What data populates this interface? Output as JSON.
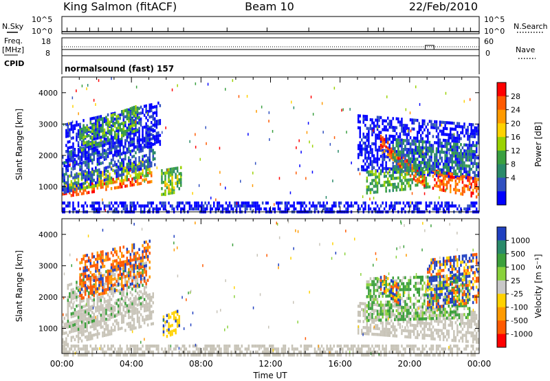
{
  "header": {
    "station": "King Salmon (fitACF)",
    "beam": "Beam 10",
    "date": "22/Feb/2010"
  },
  "side_labels": {
    "nsky": "N.Sky",
    "freq": "Freq.",
    "freq_unit": "[MHz]",
    "cpid": "CPID",
    "nsearch": "N.Search",
    "nave": "Nave"
  },
  "cpid_text": "normalsound (fast) 157",
  "chart_data": [
    {
      "type": "line",
      "name": "nsky-nsearch",
      "yticks_left": [
        "10^5",
        "10^0"
      ],
      "yticks_right": [
        "10^5",
        "10^0"
      ],
      "spike_hours": [
        0.3,
        0.8,
        1.6,
        2.1,
        2.9,
        3.4,
        4.0,
        5.2,
        6.1,
        7.0,
        9.5,
        11.8,
        14.2,
        17.6,
        18.2,
        18.5,
        20.1,
        21.4,
        22.3,
        22.7,
        23.1,
        23.5
      ]
    },
    {
      "type": "line",
      "name": "freq-nave",
      "yticks_left": [
        "18",
        "8"
      ],
      "yticks_right": [
        "60",
        "0"
      ],
      "freq_mhz": 10.8,
      "nave_step": {
        "start_hour": 20.9,
        "end_hour": 21.4
      }
    },
    {
      "type": "heatmap",
      "name": "power",
      "xlabel": "",
      "ylabel": "Slant Range [km]",
      "xlim": [
        0,
        24
      ],
      "ylim": [
        200,
        4500
      ],
      "yticks": [
        1000,
        2000,
        3000,
        4000
      ],
      "colorbar_label": "Power [dB]",
      "colorbar_ticks": [
        "28",
        "24",
        "20",
        "16",
        "12",
        "8",
        "4"
      ],
      "colorbar_colors": [
        "#ff0000",
        "#ff5a00",
        "#ff9a00",
        "#ffd200",
        "#9ad200",
        "#3aa040",
        "#2a8a6a",
        "#3050c0",
        "#0000ff"
      ],
      "colors": [
        "#0000ff",
        "#3050c0",
        "#2a8a6a",
        "#3aa040",
        "#9ad200",
        "#ffd200",
        "#ff9a00",
        "#ff5a00",
        "#ff0000"
      ],
      "bands": [
        {
          "x0": 0.0,
          "x1": 5.2,
          "y_start": 900,
          "y_end": 1400,
          "width": 180,
          "level": 7
        },
        {
          "x0": 0.0,
          "x1": 5.0,
          "y_start": 1150,
          "y_end": 1700,
          "width": 280,
          "level": 4
        },
        {
          "x0": 0.0,
          "x1": 5.3,
          "y_start": 1500,
          "y_end": 2400,
          "width": 650,
          "level": 1
        },
        {
          "x0": 0.2,
          "x1": 5.6,
          "y_start": 2400,
          "y_end": 3100,
          "width": 700,
          "level": 0
        },
        {
          "x0": 1.0,
          "x1": 4.5,
          "y_start": 2600,
          "y_end": 3300,
          "width": 400,
          "level": 3
        },
        {
          "x0": 5.7,
          "x1": 6.8,
          "y_start": 1200,
          "y_end": 1300,
          "width": 400,
          "level": 3
        },
        {
          "x0": 5.9,
          "x1": 6.6,
          "y_start": 1000,
          "y_end": 1300,
          "width": 200,
          "level": 5
        },
        {
          "x0": 17.0,
          "x1": 23.99,
          "y_start": 2500,
          "y_end": 2200,
          "width": 900,
          "level": 0
        },
        {
          "x0": 17.5,
          "x1": 21.2,
          "y_start": 1200,
          "y_end": 1400,
          "width": 350,
          "level": 3
        },
        {
          "x0": 18.3,
          "x1": 21.0,
          "y_start": 2500,
          "y_end": 1100,
          "width": 220,
          "level": 7
        },
        {
          "x0": 21.3,
          "x1": 23.99,
          "y_start": 1300,
          "y_end": 1000,
          "width": 300,
          "level": 7
        },
        {
          "x0": 19.0,
          "x1": 23.9,
          "y_start": 2100,
          "y_end": 1900,
          "width": 500,
          "level": 2
        },
        {
          "x0": 0.0,
          "x1": 23.99,
          "y_start": 350,
          "y_end": 350,
          "width": 200,
          "level": 0
        }
      ]
    },
    {
      "type": "heatmap",
      "name": "velocity",
      "xlabel": "Time UT",
      "ylabel": "Slant Range [km]",
      "xlim": [
        0,
        24
      ],
      "ylim": [
        200,
        4500
      ],
      "xticks": [
        "00:00",
        "04:00",
        "08:00",
        "12:00",
        "16:00",
        "20:00",
        "00:00"
      ],
      "yticks": [
        1000,
        2000,
        3000,
        4000
      ],
      "colorbar_label": "Velocity [m s⁻¹]",
      "colorbar_ticks": [
        "1000",
        "500",
        "100",
        "25",
        "-25",
        "-100",
        "-500",
        "-1000"
      ],
      "colorbar_colors": [
        "#2040c0",
        "#2a8a6a",
        "#3ca03c",
        "#8ad23c",
        "#c8c8c8",
        "#ffd200",
        "#ff9a00",
        "#ff5a00",
        "#ff0000"
      ],
      "colors": [
        "#c8c4b8",
        "#c8c4b8",
        "#3ca03c",
        "#8ad23c",
        "#ff9a00",
        "#ff5a00",
        "#2040c0",
        "#ffd200"
      ],
      "bands": [
        {
          "x0": 0.0,
          "x1": 5.2,
          "y_start": 1000,
          "y_end": 1700,
          "width": 500,
          "level": 0
        },
        {
          "x0": 0.3,
          "x1": 4.8,
          "y_start": 1700,
          "y_end": 2600,
          "width": 800,
          "level": 1
        },
        {
          "x0": 1.0,
          "x1": 5.0,
          "y_start": 2700,
          "y_end": 3200,
          "width": 700,
          "level": 5
        },
        {
          "x0": 5.8,
          "x1": 6.7,
          "y_start": 1100,
          "y_end": 1300,
          "width": 350,
          "level": 7
        },
        {
          "x0": 17.0,
          "x1": 23.99,
          "y_start": 1400,
          "y_end": 1100,
          "width": 500,
          "level": 0
        },
        {
          "x0": 17.5,
          "x1": 23.5,
          "y_start": 2000,
          "y_end": 2100,
          "width": 700,
          "level": 2
        },
        {
          "x0": 18.3,
          "x1": 19.5,
          "y_start": 2500,
          "y_end": 2100,
          "width": 300,
          "level": 6
        },
        {
          "x0": 21.0,
          "x1": 23.99,
          "y_start": 2500,
          "y_end": 2700,
          "width": 800,
          "level": 6
        },
        {
          "x0": 0.0,
          "x1": 23.99,
          "y_start": 350,
          "y_end": 350,
          "width": 150,
          "level": 0
        }
      ]
    }
  ]
}
